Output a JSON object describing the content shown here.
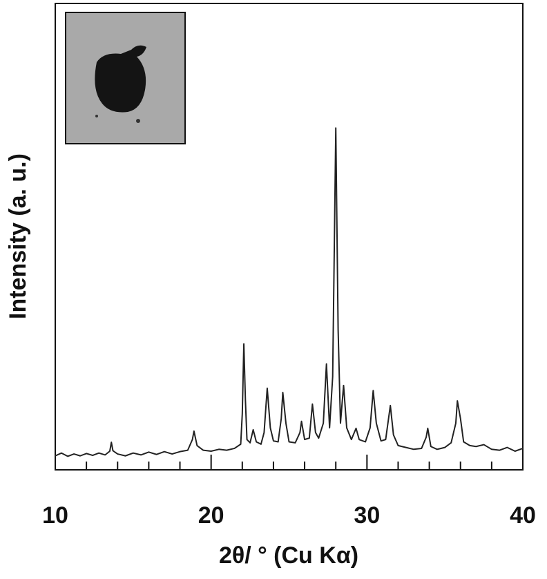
{
  "chart_data": {
    "type": "line",
    "xlabel": "2θ/ ° (Cu Kα)",
    "ylabel": "Intensity (a. u.)",
    "color": "#222222",
    "xlim": [
      10,
      40
    ],
    "xticks": [
      10,
      20,
      30,
      40
    ],
    "xminorticks": [
      12,
      14,
      16,
      18,
      22,
      24,
      26,
      28,
      32,
      34,
      36,
      38
    ],
    "ylim": [
      0,
      100
    ],
    "x": [
      10.0,
      10.4,
      10.8,
      11.2,
      11.6,
      12.0,
      12.4,
      12.8,
      13.2,
      13.5,
      13.6,
      13.7,
      14.0,
      14.5,
      15.0,
      15.5,
      16.0,
      16.5,
      17.0,
      17.5,
      18.0,
      18.5,
      18.8,
      18.9,
      19.1,
      19.5,
      20.0,
      20.5,
      21.0,
      21.5,
      21.9,
      22.0,
      22.1,
      22.2,
      22.3,
      22.5,
      22.7,
      22.9,
      23.2,
      23.4,
      23.6,
      23.8,
      24.0,
      24.3,
      24.5,
      24.6,
      24.8,
      25.0,
      25.4,
      25.7,
      25.8,
      26.0,
      26.3,
      26.5,
      26.7,
      26.9,
      27.2,
      27.4,
      27.6,
      27.8,
      28.0,
      28.15,
      28.3,
      28.5,
      28.7,
      29.0,
      29.3,
      29.5,
      29.9,
      30.2,
      30.4,
      30.6,
      30.9,
      31.2,
      31.5,
      31.7,
      32.0,
      32.5,
      33.0,
      33.5,
      33.8,
      33.9,
      34.1,
      34.5,
      35.0,
      35.4,
      35.7,
      35.8,
      36.0,
      36.2,
      36.6,
      37.0,
      37.5,
      38.0,
      38.5,
      39.0,
      39.5,
      40.0
    ],
    "values": [
      3.0,
      3.6,
      2.9,
      3.4,
      3.0,
      3.5,
      3.1,
      3.6,
      3.2,
      4.0,
      5.9,
      4.1,
      3.4,
      3.0,
      3.6,
      3.2,
      3.8,
      3.3,
      3.9,
      3.4,
      3.9,
      4.2,
      6.5,
      8.3,
      5.2,
      4.2,
      4.0,
      4.4,
      4.2,
      4.6,
      5.5,
      12,
      27,
      15,
      6.5,
      5.8,
      8.6,
      6.0,
      5.5,
      8,
      17.5,
      9,
      6.2,
      6.0,
      11,
      16.6,
      10,
      6.0,
      5.8,
      8,
      10.4,
      6.5,
      6.8,
      14.1,
      8,
      6.8,
      10,
      22.7,
      9,
      20,
      73.3,
      30,
      10,
      18.1,
      9,
      6.5,
      8.9,
      6.5,
      6.0,
      9,
      17.0,
      10,
      6.2,
      6.5,
      13.8,
      7.5,
      5.2,
      4.8,
      4.4,
      4.6,
      7,
      8.9,
      5.0,
      4.4,
      4.8,
      5.8,
      10,
      14.8,
      11,
      6,
      5.2,
      5.0,
      5.4,
      4.4,
      4.2,
      4.8,
      4.0,
      4.6
    ]
  }
}
